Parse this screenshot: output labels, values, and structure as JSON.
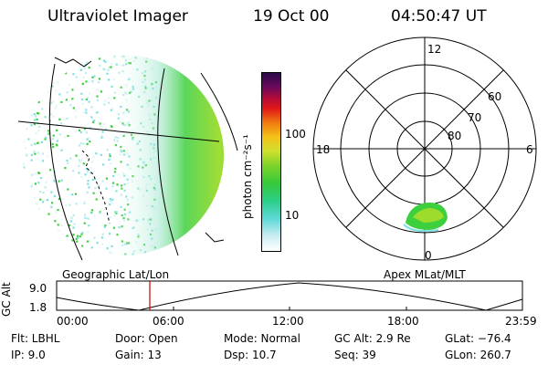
{
  "header": {
    "instrument": "Ultraviolet Imager",
    "date": "19 Oct 00",
    "time": "04:50:47 UT"
  },
  "colorbar": {
    "unit_label": "photon cm⁻²s⁻¹",
    "ticks": [
      "100",
      "10"
    ]
  },
  "panels": {
    "geo_label": "Geographic Lat/Lon",
    "apex_label": "Apex MLat/MLT"
  },
  "polar": {
    "mlt_top": "12",
    "mlt_left": "18",
    "mlt_right": "6",
    "mlt_bottom": "0",
    "lat_60": "60",
    "lat_70": "70",
    "lat_80": "80"
  },
  "orbit": {
    "axis_label": "GC Alt",
    "ytick_top": "9.0",
    "ytick_bottom": "1.8",
    "xticks": [
      "00:00",
      "06:00",
      "12:00",
      "18:00",
      "23:59"
    ]
  },
  "info": {
    "flt": "Flt:  LBHL",
    "ip": "IP:  9.0",
    "door": "Door:  Open",
    "gain": "Gain:  13",
    "mode": "Mode:  Normal",
    "dsp": "Dsp:    10.7",
    "gcalt": "GC Alt:  2.9 Re",
    "seq": "Seq:  39",
    "glat": "GLat:  −76.4",
    "glon": "GLon:  260.7"
  },
  "colors": {
    "accent_marker": "#cc0000",
    "aurora_green": "#3ecf3e",
    "aurora_yellow": "#c8e830",
    "sparse_cyan": "#7ee0e0"
  }
}
